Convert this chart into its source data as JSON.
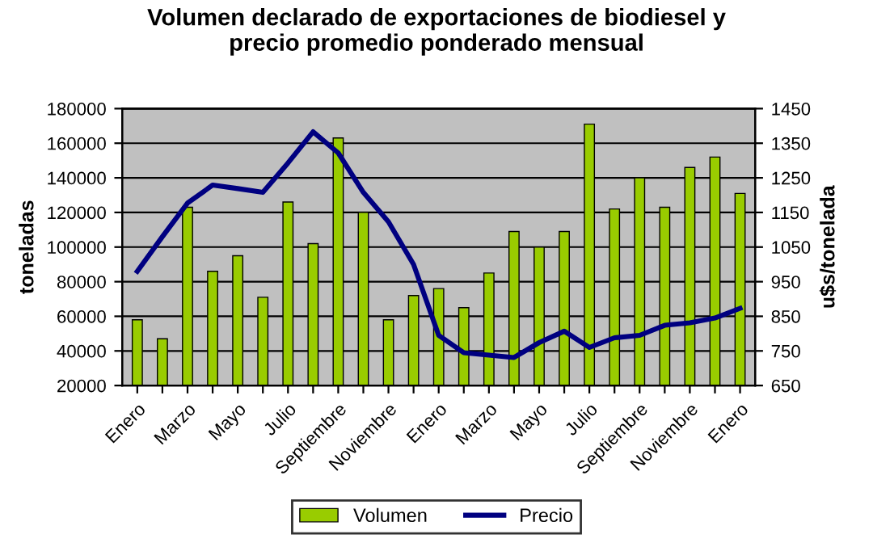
{
  "chart_data": {
    "type": "bar",
    "title": "Volumen declarado de exportaciones de biodiesel y\nprecio promedio ponderado mensual",
    "ylabel": "toneladas",
    "y2label": "u$s/tonelada",
    "categories": [
      "Enero",
      null,
      "Marzo",
      null,
      "Mayo",
      null,
      "Julio",
      null,
      "Septiembre",
      null,
      "Noviembre",
      null,
      "Enero",
      null,
      "Marzo",
      null,
      "Mayo",
      null,
      "Julio",
      null,
      "Septiembre",
      null,
      "Noviembre",
      null,
      "Enero"
    ],
    "series": [
      {
        "name": "Volumen",
        "color": "#99cc00",
        "values": [
          58000,
          47000,
          123000,
          86000,
          95000,
          71000,
          126000,
          102000,
          163000,
          120000,
          58000,
          72000,
          76000,
          65000,
          85000,
          109000,
          100000,
          109000,
          171000,
          122000,
          140000,
          123000,
          146000,
          152000,
          131000
        ]
      },
      {
        "name": "Precio",
        "type": "line",
        "axis": "y2",
        "color": "#000080",
        "values": [
          980,
          1080,
          1177,
          1229,
          1219,
          1208,
          1293,
          1383,
          1322,
          1208,
          1123,
          1000,
          795,
          745,
          738,
          731,
          774,
          807,
          760,
          788,
          795,
          824,
          831,
          845,
          873
        ]
      }
    ],
    "ylim": [
      20000,
      180000
    ],
    "yticks": [
      20000,
      40000,
      60000,
      80000,
      100000,
      120000,
      140000,
      160000,
      180000
    ],
    "y2lim": [
      650,
      1450
    ],
    "y2ticks": [
      650,
      750,
      850,
      950,
      1050,
      1150,
      1250,
      1350,
      1450
    ],
    "grid": "y",
    "legend": "bottom"
  }
}
